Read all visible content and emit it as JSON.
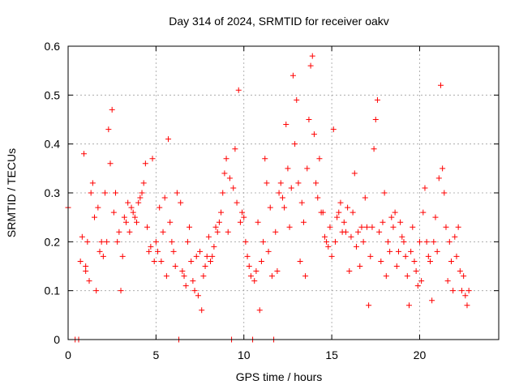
{
  "chart_data": {
    "type": "scatter",
    "title": "Day 314 of 2024, SRMTID for receiver oakv",
    "xlabel": "GPS time / hours",
    "ylabel": "SRMTID / TECUs",
    "xlim": [
      0,
      24.5
    ],
    "ylim": [
      0,
      0.6
    ],
    "xticks": [
      0,
      5,
      10,
      15,
      20
    ],
    "xtick_labels": [
      "0",
      "5",
      "10",
      "15",
      "20"
    ],
    "yticks": [
      0,
      0.1,
      0.2,
      0.3,
      0.4,
      0.5,
      0.6
    ],
    "ytick_labels": [
      "0",
      "0.1",
      "0.2",
      "0.3",
      "0.4",
      "0.5",
      "0.6"
    ],
    "grid": true,
    "marker": "+",
    "color": "#ff0000",
    "series": [
      {
        "name": "SRMTID",
        "x": [
          0.0,
          0.4,
          0.6,
          0.7,
          0.8,
          0.9,
          1.0,
          1.0,
          1.1,
          1.2,
          1.3,
          1.4,
          1.5,
          1.6,
          1.7,
          1.8,
          1.9,
          2.0,
          2.1,
          2.2,
          2.3,
          2.4,
          2.5,
          2.6,
          2.7,
          2.8,
          2.9,
          3.0,
          3.1,
          3.2,
          3.3,
          3.4,
          3.5,
          3.6,
          3.7,
          3.8,
          3.9,
          4.0,
          4.1,
          4.2,
          4.3,
          4.4,
          4.5,
          4.6,
          4.7,
          4.8,
          4.9,
          5.0,
          5.1,
          5.2,
          5.3,
          5.4,
          5.5,
          5.6,
          5.7,
          5.8,
          5.9,
          6.0,
          6.1,
          6.2,
          6.3,
          6.4,
          6.5,
          6.6,
          6.7,
          6.8,
          6.9,
          7.0,
          7.1,
          7.2,
          7.3,
          7.4,
          7.5,
          7.6,
          7.7,
          7.8,
          7.9,
          8.0,
          8.1,
          8.2,
          8.3,
          8.4,
          8.5,
          8.6,
          8.7,
          8.8,
          8.9,
          9.0,
          9.1,
          9.2,
          9.3,
          9.4,
          9.5,
          9.6,
          9.7,
          9.8,
          9.9,
          10.0,
          10.1,
          10.2,
          10.3,
          10.4,
          10.5,
          10.6,
          10.7,
          10.8,
          10.9,
          11.0,
          11.1,
          11.2,
          11.3,
          11.4,
          11.5,
          11.6,
          11.7,
          11.8,
          11.9,
          12.0,
          12.1,
          12.2,
          12.3,
          12.4,
          12.5,
          12.6,
          12.7,
          12.8,
          12.9,
          13.0,
          13.1,
          13.2,
          13.3,
          13.4,
          13.5,
          13.6,
          13.7,
          13.8,
          13.9,
          14.0,
          14.1,
          14.2,
          14.3,
          14.4,
          14.5,
          14.6,
          14.7,
          14.8,
          14.9,
          15.0,
          15.1,
          15.2,
          15.3,
          15.4,
          15.5,
          15.6,
          15.7,
          15.8,
          15.9,
          16.0,
          16.1,
          16.2,
          16.3,
          16.4,
          16.5,
          16.6,
          16.7,
          16.8,
          16.9,
          17.0,
          17.1,
          17.2,
          17.3,
          17.4,
          17.5,
          17.6,
          17.7,
          17.8,
          17.9,
          18.0,
          18.1,
          18.2,
          18.3,
          18.4,
          18.5,
          18.6,
          18.7,
          18.8,
          18.9,
          19.0,
          19.1,
          19.2,
          19.3,
          19.4,
          19.5,
          19.6,
          19.7,
          19.8,
          19.9,
          20.0,
          20.1,
          20.2,
          20.3,
          20.4,
          20.5,
          20.6,
          20.7,
          20.8,
          20.9,
          21.0,
          21.1,
          21.2,
          21.3,
          21.4,
          21.5,
          21.6,
          21.7,
          21.8,
          21.9,
          22.0,
          22.1,
          22.2,
          22.3,
          22.4,
          22.5,
          22.6,
          22.7,
          22.8
        ],
        "y": [
          0.27,
          0.0,
          0.0,
          0.16,
          0.21,
          0.38,
          0.14,
          0.15,
          0.2,
          0.12,
          0.3,
          0.32,
          0.25,
          0.1,
          0.27,
          0.18,
          0.2,
          0.17,
          0.3,
          0.2,
          0.43,
          0.36,
          0.47,
          0.26,
          0.3,
          0.2,
          0.22,
          0.1,
          0.17,
          0.25,
          0.24,
          0.28,
          0.22,
          0.27,
          0.26,
          0.25,
          0.24,
          0.28,
          0.29,
          0.3,
          0.32,
          0.36,
          0.23,
          0.18,
          0.19,
          0.37,
          0.16,
          0.2,
          0.18,
          0.27,
          0.16,
          0.22,
          0.29,
          0.13,
          0.41,
          0.24,
          0.2,
          0.18,
          0.15,
          0.3,
          0.0,
          0.28,
          0.14,
          0.13,
          0.11,
          0.2,
          0.23,
          0.16,
          0.12,
          0.1,
          0.17,
          0.09,
          0.18,
          0.06,
          0.13,
          0.15,
          0.17,
          0.21,
          0.16,
          0.17,
          0.19,
          0.23,
          0.22,
          0.24,
          0.26,
          0.3,
          0.34,
          0.37,
          0.22,
          0.33,
          0.0,
          0.31,
          0.39,
          0.28,
          0.51,
          0.24,
          0.26,
          0.25,
          0.2,
          0.17,
          0.15,
          0.13,
          0.0,
          0.12,
          0.14,
          0.24,
          0.06,
          0.16,
          0.2,
          0.37,
          0.32,
          0.18,
          0.27,
          0.13,
          0.0,
          0.22,
          0.14,
          0.3,
          0.32,
          0.29,
          0.27,
          0.44,
          0.35,
          0.23,
          0.31,
          0.54,
          0.4,
          0.49,
          0.32,
          0.16,
          0.28,
          0.24,
          0.13,
          0.35,
          0.45,
          0.56,
          0.58,
          0.42,
          0.32,
          0.29,
          0.37,
          0.26,
          0.26,
          0.21,
          0.2,
          0.19,
          0.23,
          0.17,
          0.43,
          0.2,
          0.25,
          0.26,
          0.28,
          0.22,
          0.24,
          0.22,
          0.27,
          0.14,
          0.21,
          0.26,
          0.34,
          0.19,
          0.22,
          0.15,
          0.23,
          0.2,
          0.29,
          0.23,
          0.07,
          0.17,
          0.23,
          0.39,
          0.45,
          0.49,
          0.22,
          0.16,
          0.24,
          0.3,
          0.13,
          0.2,
          0.18,
          0.25,
          0.23,
          0.26,
          0.15,
          0.18,
          0.24,
          0.21,
          0.2,
          0.17,
          0.13,
          0.07,
          0.18,
          0.23,
          0.16,
          0.14,
          0.11,
          0.2,
          0.12,
          0.26,
          0.31,
          0.2,
          0.17,
          0.16,
          0.08,
          0.2,
          0.25,
          0.18,
          0.33,
          0.52,
          0.35,
          0.3,
          0.23,
          0.12,
          0.2,
          0.16,
          0.1,
          0.21,
          0.17,
          0.23,
          0.14,
          0.1,
          0.13,
          0.09,
          0.07,
          0.1
        ]
      }
    ]
  }
}
